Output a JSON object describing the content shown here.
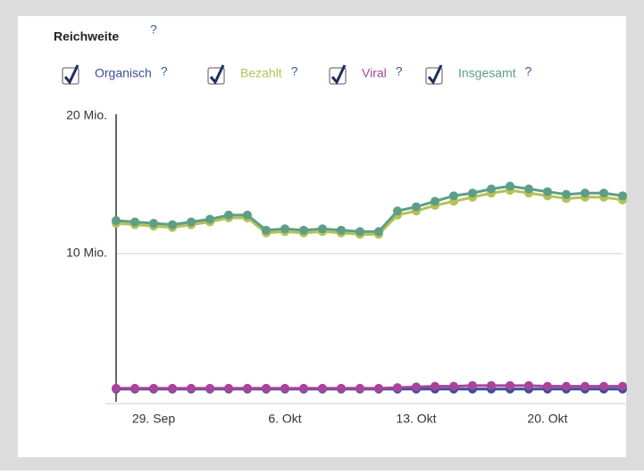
{
  "chart_data": {
    "type": "line",
    "title": "Reichweite",
    "help_mark": "?",
    "categories": [
      null,
      null,
      "29. Sep",
      null,
      null,
      null,
      null,
      null,
      null,
      "6. Okt",
      null,
      null,
      null,
      null,
      null,
      null,
      "13. Okt",
      null,
      null,
      null,
      null,
      null,
      null,
      "20. Okt",
      null,
      null,
      null,
      null
    ],
    "series": [
      {
        "name": "Organisch",
        "color": "#3b4f9a",
        "values": [
          150000,
          150000,
          150000,
          150000,
          150000,
          150000,
          150000,
          150000,
          150000,
          150000,
          150000,
          150000,
          150000,
          150000,
          150000,
          150000,
          150000,
          150000,
          150000,
          150000,
          150000,
          150000,
          150000,
          150000,
          150000,
          150000,
          150000,
          150000
        ]
      },
      {
        "name": "Bezahlt",
        "color": "#b5c255",
        "values": [
          12200000,
          12100000,
          12000000,
          11900000,
          12100000,
          12300000,
          12600000,
          12600000,
          11500000,
          11600000,
          11500000,
          11600000,
          11500000,
          11400000,
          11400000,
          12800000,
          13100000,
          13500000,
          13800000,
          14100000,
          14400000,
          14600000,
          14400000,
          14200000,
          14000000,
          14100000,
          14100000,
          13900000
        ]
      },
      {
        "name": "Viral",
        "color": "#a8449c",
        "values": [
          200000,
          200000,
          200000,
          200000,
          200000,
          200000,
          200000,
          200000,
          200000,
          200000,
          200000,
          200000,
          200000,
          200000,
          200000,
          250000,
          300000,
          350000,
          350000,
          400000,
          400000,
          400000,
          400000,
          350000,
          350000,
          350000,
          350000,
          350000
        ]
      },
      {
        "name": "Insgesamt",
        "color": "#5e9e86",
        "values": [
          12400000,
          12300000,
          12200000,
          12100000,
          12300000,
          12500000,
          12800000,
          12800000,
          11700000,
          11800000,
          11700000,
          11800000,
          11700000,
          11600000,
          11600000,
          13100000,
          13400000,
          13800000,
          14200000,
          14400000,
          14700000,
          14900000,
          14700000,
          14500000,
          14300000,
          14400000,
          14400000,
          14200000
        ]
      }
    ],
    "ylim": [
      0,
      20000000
    ],
    "yticks": [
      {
        "value": 10000000,
        "label": "10 Mio."
      },
      {
        "value": 20000000,
        "label": "20 Mio."
      }
    ],
    "grid": true
  }
}
